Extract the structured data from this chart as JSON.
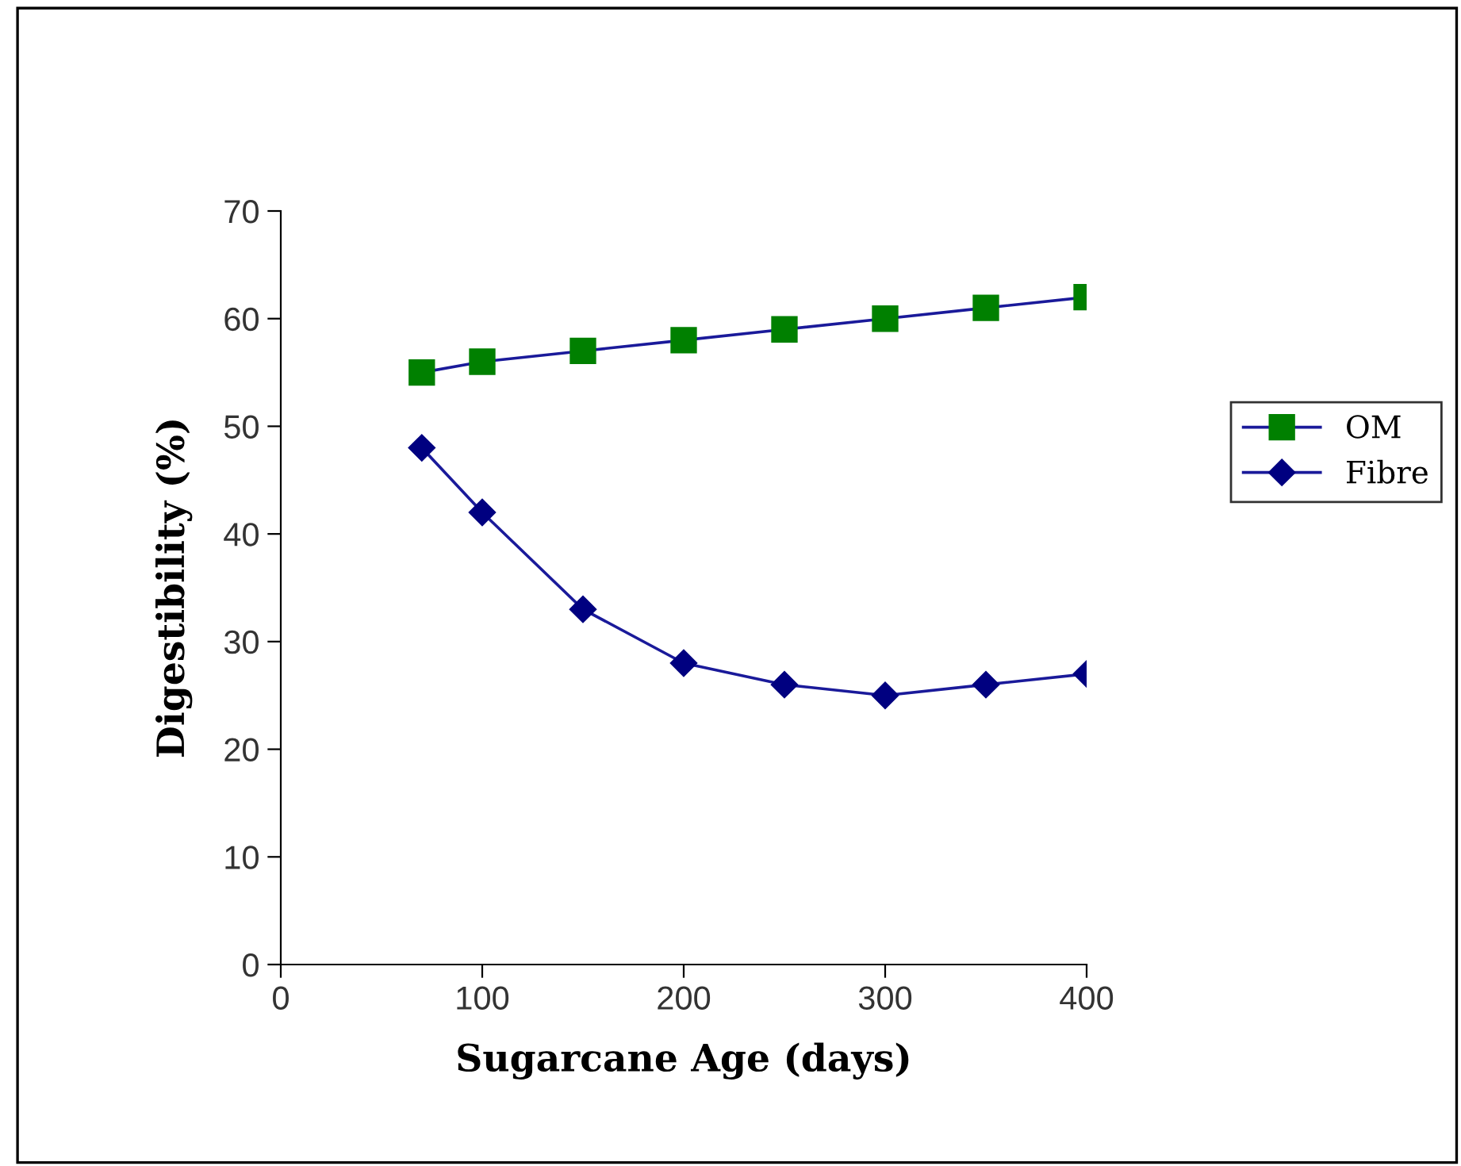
{
  "chart_data": {
    "type": "line",
    "xlabel": "Sugarcane Age (days)",
    "ylabel": "Digestibility (%)",
    "x": [
      70,
      100,
      150,
      200,
      250,
      300,
      350,
      400
    ],
    "series": [
      {
        "name": "OM",
        "color": "#008000",
        "marker": "square",
        "values": [
          55,
          56,
          57,
          58,
          59,
          60,
          61,
          62
        ]
      },
      {
        "name": "Fibre",
        "color": "#000080",
        "marker": "diamond",
        "values": [
          48,
          42,
          33,
          28,
          26,
          25,
          26,
          27
        ]
      }
    ],
    "xlim": [
      0,
      400
    ],
    "xticks": [
      0,
      100,
      200,
      300,
      400
    ],
    "ylim": [
      0,
      70
    ],
    "yticks": [
      0,
      10,
      20,
      30,
      40,
      50,
      60,
      70
    ],
    "grid": false,
    "legend": "right",
    "line_style": "solid"
  }
}
